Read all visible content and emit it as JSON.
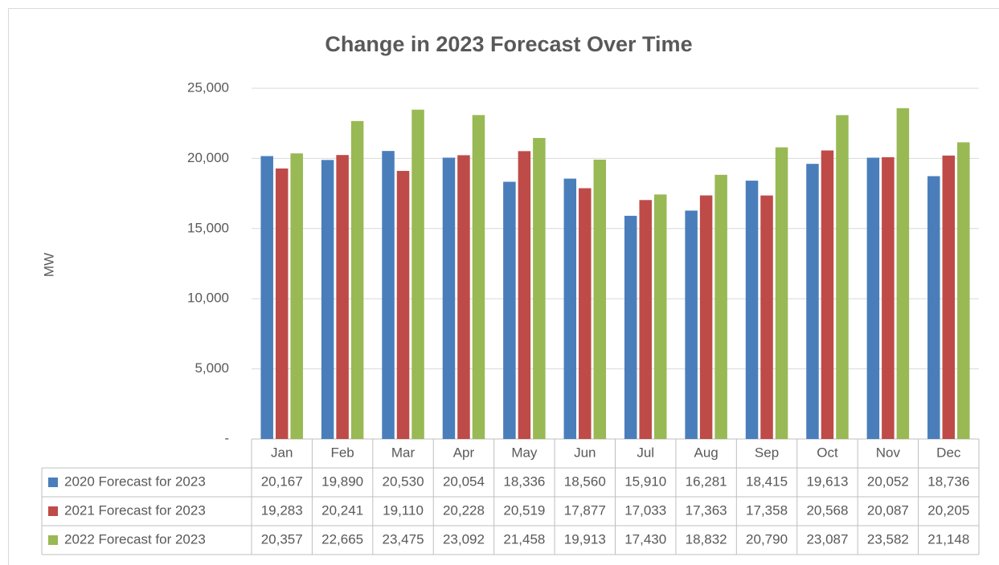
{
  "chart_data": {
    "type": "bar",
    "title": "Change in 2023 Forecast Over Time",
    "y_label": "MW",
    "categories": [
      "Jan",
      "Feb",
      "Mar",
      "Apr",
      "May",
      "Jun",
      "Jul",
      "Aug",
      "Sep",
      "Oct",
      "Nov",
      "Dec"
    ],
    "series": [
      {
        "name": "2020 Forecast for 2023",
        "color": "#4a7ebb",
        "values": [
          20167,
          19890,
          20530,
          20054,
          18336,
          18560,
          15910,
          16281,
          18415,
          19613,
          20052,
          18736
        ],
        "value_labels": [
          "20,167",
          "19,890",
          "20,530",
          "20,054",
          "18,336",
          "18,560",
          "15,910",
          "16,281",
          "18,415",
          "19,613",
          "20,052",
          "18,736"
        ]
      },
      {
        "name": "2021 Forecast for 2023",
        "color": "#be4b48",
        "values": [
          19283,
          20241,
          19110,
          20228,
          20519,
          17877,
          17033,
          17363,
          17358,
          20568,
          20087,
          20205
        ],
        "value_labels": [
          "19,283",
          "20,241",
          "19,110",
          "20,228",
          "20,519",
          "17,877",
          "17,033",
          "17,363",
          "17,358",
          "20,568",
          "20,087",
          "20,205"
        ]
      },
      {
        "name": "2022 Forecast for 2023",
        "color": "#98b954",
        "values": [
          20357,
          22665,
          23475,
          23092,
          21458,
          19913,
          17430,
          18832,
          20790,
          23087,
          23582,
          21148
        ],
        "value_labels": [
          "20,357",
          "22,665",
          "23,475",
          "23,092",
          "21,458",
          "19,913",
          "17,430",
          "18,832",
          "20,790",
          "23,087",
          "23,582",
          "21,148"
        ]
      }
    ],
    "ylim": [
      0,
      25000
    ],
    "yticks": [
      {
        "value": 0,
        "label": "-"
      },
      {
        "value": 5000,
        "label": "5,000"
      },
      {
        "value": 10000,
        "label": "10,000"
      },
      {
        "value": 15000,
        "label": "15,000"
      },
      {
        "value": 20000,
        "label": "20,000"
      },
      {
        "value": 25000,
        "label": "25,000"
      }
    ],
    "grid": true
  }
}
